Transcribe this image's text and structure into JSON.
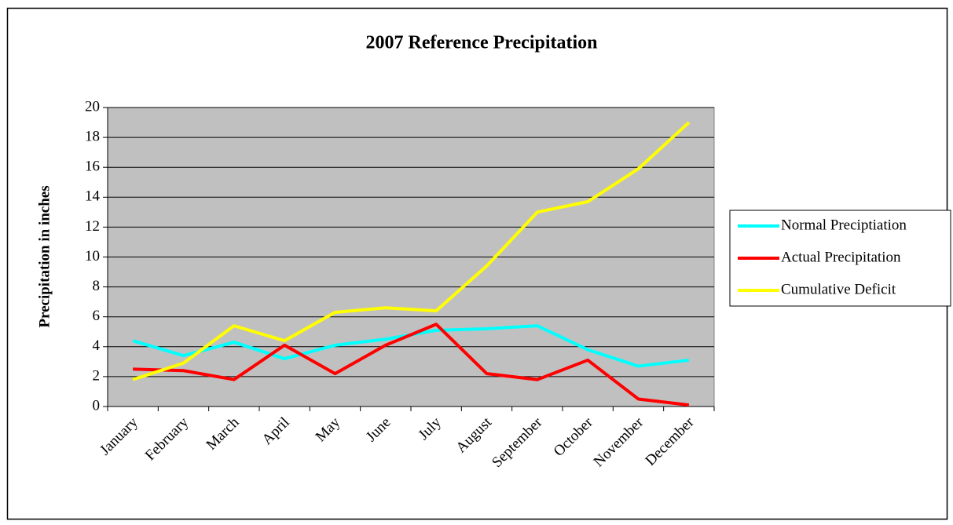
{
  "chart_data": {
    "type": "line",
    "title": "2007 Reference Precipitation",
    "y_label": "Precipitation in inches",
    "categories": [
      "January",
      "February",
      "March",
      "April",
      "May",
      "June",
      "July",
      "August",
      "September",
      "October",
      "November",
      "December"
    ],
    "series": [
      {
        "name": "Normal Preciptiation",
        "color": "#00ffff",
        "values": [
          4.4,
          3.4,
          4.3,
          3.2,
          4.1,
          4.5,
          5.1,
          5.2,
          5.4,
          3.8,
          2.7,
          3.1
        ]
      },
      {
        "name": "Actual Precipitation",
        "color": "#ff0000",
        "values": [
          2.5,
          2.4,
          1.8,
          4.1,
          2.2,
          4.1,
          5.5,
          2.2,
          1.8,
          3.1,
          0.5,
          0.1
        ]
      },
      {
        "name": "Cumulative Deficit",
        "color": "#ffff00",
        "values": [
          1.8,
          2.9,
          5.4,
          4.4,
          6.3,
          6.6,
          6.4,
          9.4,
          13.0,
          13.7,
          15.9,
          19.0
        ]
      }
    ],
    "ylim": [
      0,
      20
    ],
    "yticks": [
      0,
      2,
      4,
      6,
      8,
      10,
      12,
      14,
      16,
      18,
      20
    ],
    "grid": true,
    "legend": "right"
  }
}
